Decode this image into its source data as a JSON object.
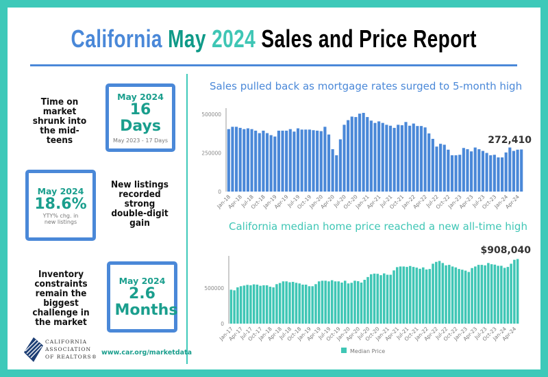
{
  "title": {
    "part1": "California",
    "part2": "May",
    "part3": "2024",
    "part4": "Sales and Price Report"
  },
  "colors": {
    "blue": "#4a88d8",
    "teal": "#3fc6b5",
    "dark_teal": "#1a9e8d",
    "border": "#3ec9b9"
  },
  "stats": [
    {
      "statement": "Time on market shrunk into the mid-teens",
      "label": "May 2024",
      "value": "16 Days",
      "note": "May 2023 - 17 Days"
    },
    {
      "statement": "New listings recorded strong double-digit gain",
      "label": "May 2024",
      "value": "18.6%",
      "note": "YTY% chg. in new listings"
    },
    {
      "statement": "Inventory constraints remain the biggest challenge in the market",
      "label": "May 2024",
      "value": "2.6 Months",
      "note": ""
    }
  ],
  "footer": {
    "logo_text": "CALIFORNIA ASSOCIATION OF REALTORS®",
    "url": "www.car.org/marketdata"
  },
  "chart_data": [
    {
      "type": "bar",
      "title": "Sales pulled back as mortgage rates surged to 5-month high",
      "color": "#4a88d8",
      "period": "Jan-18 to May-24 (monthly)",
      "x_tick_labels": [
        "Jan-18",
        "Apr-18",
        "Jul-18",
        "Oct-18",
        "Jan-19",
        "Apr-19",
        "Jul-19",
        "Oct-19",
        "Jan-20",
        "Apr-20",
        "Jul-20",
        "Oct-20",
        "Jan-21",
        "Apr-21",
        "Jul-21",
        "Oct-21",
        "Jan-22",
        "Apr-22",
        "Jul-22",
        "Oct-22",
        "Jan-23",
        "Apr-23",
        "Jul-23",
        "Oct-23",
        "Jan-24",
        "Apr-24"
      ],
      "y_tick_labels": [
        "0",
        "250000",
        "500000"
      ],
      "ylim": [
        0,
        520000
      ],
      "values": [
        404000,
        419000,
        419000,
        412000,
        404000,
        409000,
        404000,
        394000,
        378000,
        394000,
        378000,
        365000,
        356000,
        394000,
        394000,
        394000,
        404000,
        388000,
        409000,
        401000,
        401000,
        401000,
        397000,
        394000,
        391000,
        419000,
        369000,
        274000,
        235000,
        338000,
        432000,
        462000,
        485000,
        482000,
        504000,
        509000,
        482000,
        459000,
        444000,
        454000,
        444000,
        432000,
        426000,
        412000,
        432000,
        429000,
        450000,
        426000,
        440000,
        424000,
        424000,
        415000,
        376000,
        341000,
        291000,
        309000,
        303000,
        271000,
        235000,
        235000,
        238000,
        282000,
        274000,
        260000,
        285000,
        274000,
        263000,
        250000,
        235000,
        238000,
        221000,
        221000,
        253000,
        285000,
        263000,
        271000,
        272410
      ],
      "annotation": "272,410"
    },
    {
      "type": "bar",
      "title": "California median home price reached a new all-time high",
      "color": "#3fc6b5",
      "legend": "Median Price",
      "period": "Jan-17 to May-24 (monthly)",
      "x_tick_labels": [
        "Jan-17",
        "Apr-17",
        "Jul-17",
        "Oct-17",
        "Jan-18",
        "Apr-18",
        "Jul-18",
        "Oct-18",
        "Jan-19",
        "Apr-19",
        "Jul-19",
        "Oct-19",
        "Jan-20",
        "Apr-20",
        "Jul-20",
        "Oct-20",
        "Jan-21",
        "Apr-21",
        "Jul-21",
        "Oct-21",
        "Jan-22",
        "Apr-22",
        "Jul-22",
        "Oct-22",
        "Jan-23",
        "Apr-23",
        "Jul-23",
        "Oct-23",
        "Jan-24",
        "Apr-24"
      ],
      "y_tick_labels": [
        "0",
        "500000"
      ],
      "ylim": [
        0,
        950000
      ],
      "values": [
        477000,
        468000,
        510000,
        526000,
        535000,
        545000,
        539000,
        552000,
        548000,
        532000,
        539000,
        539000,
        519000,
        510000,
        555000,
        571000,
        594000,
        594000,
        581000,
        587000,
        574000,
        565000,
        548000,
        548000,
        526000,
        526000,
        555000,
        594000,
        603000,
        603000,
        594000,
        610000,
        594000,
        594000,
        577000,
        603000,
        565000,
        574000,
        603000,
        597000,
        577000,
        616000,
        655000,
        694000,
        703000,
        700000,
        681000,
        706000,
        687000,
        687000,
        748000,
        794000,
        803000,
        803000,
        797000,
        810000,
        797000,
        787000,
        771000,
        790000,
        761000,
        768000,
        842000,
        868000,
        881000,
        852000,
        819000,
        826000,
        803000,
        790000,
        768000,
        758000,
        745000,
        726000,
        781000,
        803000,
        826000,
        826000,
        819000,
        852000,
        835000,
        829000,
        813000,
        813000,
        784000,
        797000,
        842000,
        897000,
        908040
      ],
      "annotation": "$908,040"
    }
  ]
}
